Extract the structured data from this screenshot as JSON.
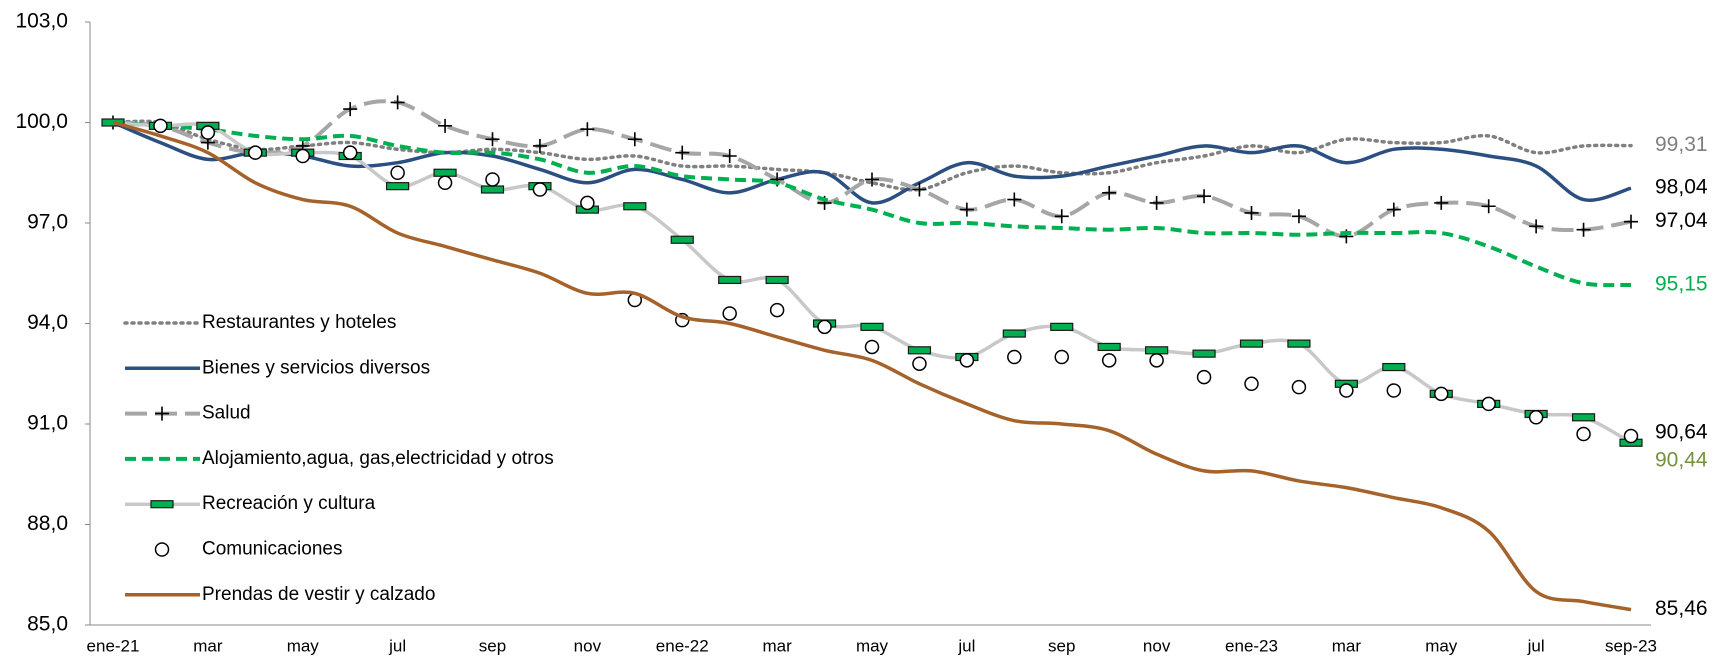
{
  "chart_data": {
    "type": "line",
    "categories": [
      "ene-21",
      null,
      "mar",
      null,
      "may",
      null,
      "jul",
      null,
      "sep",
      null,
      "nov",
      null,
      "ene-22",
      null,
      "mar",
      null,
      "may",
      null,
      "jul",
      null,
      "sep",
      null,
      "nov",
      null,
      "ene-23",
      null,
      "mar",
      null,
      "may",
      null,
      "jul",
      null,
      "sep-23"
    ],
    "ylim": [
      85,
      103
    ],
    "yticks": [
      {
        "value": 85,
        "label": "85,0"
      },
      {
        "value": 88,
        "label": "88,0"
      },
      {
        "value": 91,
        "label": "91,0"
      },
      {
        "value": 94,
        "label": "94,0"
      },
      {
        "value": 97,
        "label": "97,0"
      },
      {
        "value": 100,
        "label": "100,0"
      },
      {
        "value": 103,
        "label": "103,0"
      }
    ],
    "grid": false,
    "legend": "left",
    "series": [
      {
        "name": "Restaurantes y hoteles",
        "color": "#808080",
        "line_style": "dotted",
        "marker": "none",
        "label_color": "#808080",
        "values": [
          100,
          100.0,
          99.5,
          99.2,
          99.3,
          99.4,
          99.2,
          99.1,
          99.2,
          99.1,
          98.9,
          99.0,
          98.7,
          98.7,
          98.6,
          98.5,
          98.2,
          98.0,
          98.5,
          98.7,
          98.5,
          98.5,
          98.8,
          99.0,
          99.3,
          99.1,
          99.5,
          99.4,
          99.4,
          99.6,
          99.1,
          99.3,
          99.31
        ],
        "value_labels": [
          null,
          null,
          null,
          null,
          null,
          null,
          null,
          null,
          null,
          null,
          null,
          null,
          null,
          null,
          null,
          null,
          null,
          null,
          null,
          null,
          null,
          null,
          null,
          null,
          null,
          null,
          null,
          null,
          null,
          null,
          null,
          null,
          "99,31"
        ]
      },
      {
        "name": "Bienes y servicios diversos",
        "color": "#2b4f81",
        "line_style": "solid",
        "marker": "none",
        "label_color": "#000000",
        "values": [
          100,
          99.4,
          98.9,
          99.1,
          99.0,
          98.7,
          98.8,
          99.1,
          99.0,
          98.6,
          98.2,
          98.6,
          98.3,
          97.9,
          98.3,
          98.5,
          97.6,
          98.2,
          98.8,
          98.4,
          98.4,
          98.7,
          99.0,
          99.3,
          99.1,
          99.3,
          98.8,
          99.2,
          99.2,
          99.0,
          98.7,
          97.7,
          98.04
        ],
        "value_labels": [
          null,
          null,
          null,
          null,
          null,
          null,
          null,
          null,
          null,
          null,
          null,
          null,
          null,
          null,
          null,
          null,
          null,
          null,
          null,
          null,
          null,
          null,
          null,
          null,
          null,
          null,
          null,
          null,
          null,
          null,
          null,
          null,
          "98,04"
        ]
      },
      {
        "name": "Salud",
        "color": "#a6a6a6",
        "line_style": "dashed-long",
        "marker": "plus",
        "label_color": "#000000",
        "values": [
          100,
          99.9,
          99.4,
          99.1,
          99.3,
          100.4,
          100.6,
          99.9,
          99.5,
          99.3,
          99.8,
          99.5,
          99.1,
          99.0,
          98.3,
          97.6,
          98.3,
          98.0,
          97.4,
          97.7,
          97.2,
          97.9,
          97.6,
          97.8,
          97.3,
          97.2,
          96.6,
          97.4,
          97.6,
          97.5,
          96.9,
          96.8,
          97.04
        ],
        "value_labels": [
          null,
          null,
          null,
          null,
          null,
          null,
          null,
          null,
          null,
          null,
          null,
          null,
          null,
          null,
          null,
          null,
          null,
          null,
          null,
          null,
          null,
          null,
          null,
          null,
          null,
          null,
          null,
          null,
          null,
          null,
          null,
          null,
          "97,04"
        ]
      },
      {
        "name": "Alojamiento,agua, gas,electricidad y otros",
        "color": "#00b050",
        "line_style": "dashed",
        "marker": "none",
        "label_color": "#00b050",
        "values": [
          100,
          99.9,
          99.8,
          99.6,
          99.5,
          99.6,
          99.3,
          99.1,
          99.1,
          98.9,
          98.5,
          98.7,
          98.4,
          98.3,
          98.2,
          97.7,
          97.4,
          97.0,
          97.0,
          96.9,
          96.85,
          96.8,
          96.85,
          96.7,
          96.7,
          96.65,
          96.7,
          96.7,
          96.7,
          96.3,
          95.7,
          95.2,
          95.15
        ],
        "value_labels": [
          null,
          null,
          null,
          null,
          null,
          null,
          null,
          null,
          null,
          null,
          null,
          null,
          null,
          null,
          null,
          null,
          null,
          null,
          null,
          null,
          null,
          null,
          null,
          null,
          null,
          null,
          null,
          null,
          null,
          null,
          null,
          null,
          "95,15"
        ]
      },
      {
        "name": "Recreación y cultura",
        "color": "#c8c8c8",
        "line_style": "solid",
        "marker": "dash",
        "marker_color": "#00b050",
        "label_color": "#76923c",
        "values": [
          100,
          99.9,
          99.9,
          99.1,
          99.1,
          99.0,
          98.1,
          98.5,
          98.0,
          98.1,
          97.4,
          97.5,
          96.5,
          95.3,
          95.3,
          94.0,
          93.9,
          93.2,
          93.0,
          93.7,
          93.9,
          93.3,
          93.2,
          93.1,
          93.4,
          93.4,
          92.2,
          92.7,
          91.9,
          91.6,
          91.3,
          91.2,
          90.44
        ],
        "value_labels": [
          null,
          null,
          null,
          null,
          null,
          null,
          null,
          null,
          null,
          null,
          null,
          null,
          null,
          null,
          null,
          null,
          null,
          null,
          null,
          null,
          null,
          null,
          null,
          null,
          null,
          null,
          null,
          null,
          null,
          null,
          null,
          null,
          "90,44"
        ]
      },
      {
        "name": "Comunicaciones",
        "color": "#000000",
        "line_style": "none",
        "marker": "circle",
        "label_color": "#000000",
        "values": [
          100,
          99.9,
          99.7,
          99.1,
          99.0,
          99.1,
          98.5,
          98.2,
          98.3,
          98.0,
          97.6,
          94.7,
          94.1,
          94.3,
          94.4,
          93.9,
          93.3,
          92.8,
          92.9,
          93.0,
          93.0,
          92.9,
          92.9,
          92.4,
          92.2,
          92.1,
          92.0,
          92.0,
          91.9,
          91.6,
          91.2,
          90.7,
          90.64
        ],
        "value_labels": [
          null,
          null,
          null,
          null,
          null,
          null,
          null,
          null,
          null,
          null,
          null,
          null,
          null,
          null,
          null,
          null,
          null,
          null,
          null,
          null,
          null,
          null,
          null,
          null,
          null,
          null,
          null,
          null,
          null,
          null,
          null,
          null,
          "90,64"
        ]
      },
      {
        "name": "Prendas de vestir y calzado",
        "color": "#a5622a",
        "line_style": "solid",
        "marker": "none",
        "label_color": "#000000",
        "values": [
          100,
          99.6,
          99.1,
          98.2,
          97.7,
          97.5,
          96.7,
          96.3,
          95.9,
          95.5,
          94.9,
          94.9,
          94.2,
          94.0,
          93.6,
          93.2,
          92.9,
          92.2,
          91.6,
          91.1,
          91.0,
          90.8,
          90.1,
          89.6,
          89.6,
          89.3,
          89.1,
          88.8,
          88.5,
          87.8,
          86.0,
          85.7,
          85.46
        ],
        "value_labels": [
          null,
          null,
          null,
          null,
          null,
          null,
          null,
          null,
          null,
          null,
          null,
          null,
          null,
          null,
          null,
          null,
          null,
          null,
          null,
          null,
          null,
          null,
          null,
          null,
          null,
          null,
          null,
          null,
          null,
          null,
          null,
          null,
          "85,46"
        ]
      }
    ]
  }
}
